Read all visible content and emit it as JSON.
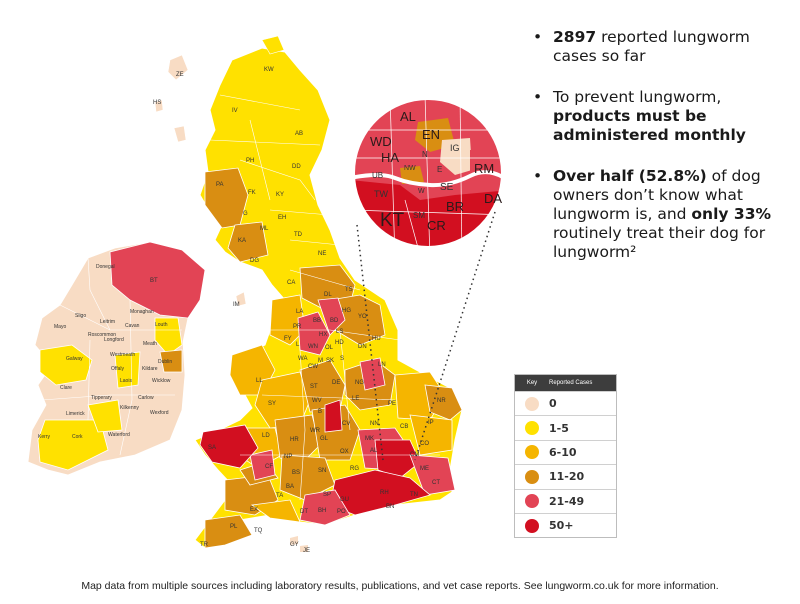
{
  "bullets": [
    {
      "parts": [
        {
          "text": "2897",
          "bold": true
        },
        {
          "text": " reported lungworm cases so far",
          "bold": false
        }
      ]
    },
    {
      "parts": [
        {
          "text": "To prevent lungworm, ",
          "bold": false
        },
        {
          "text": "products must be administered monthly",
          "bold": true
        }
      ]
    },
    {
      "parts": [
        {
          "text": "Over half (52.8%)",
          "bold": true
        },
        {
          "text": " of dog owners don’t know what lungworm is, and ",
          "bold": false
        },
        {
          "text": "only 33%",
          "bold": true
        },
        {
          "text": " routinely treat their dog for lungworm²",
          "bold": false
        }
      ]
    }
  ],
  "bullet_glyph": "•",
  "legend": {
    "header_key": "Key",
    "header_cases": "Reported Cases",
    "items": [
      {
        "label": "0",
        "color": "#f8dcc4"
      },
      {
        "label": "1-5",
        "color": "#ffe100"
      },
      {
        "label": "6-10",
        "color": "#f5b500"
      },
      {
        "label": "11-20",
        "color": "#d98e12"
      },
      {
        "label": "21-49",
        "color": "#e24455"
      },
      {
        "label": "50+",
        "color": "#d20f20"
      }
    ]
  },
  "footnote": "Map data from multiple sources including laboratory results, publications, and vet case reports. See lungworm.co.uk for more information.",
  "map_labels": {
    "gb": [
      "KW",
      "IV",
      "AB",
      "PH",
      "DD",
      "PA",
      "FK",
      "KY",
      "G",
      "ML",
      "EH",
      "TD",
      "KA",
      "DG",
      "NE",
      "CA",
      "DL",
      "TS",
      "LA",
      "YO",
      "BD",
      "BB",
      "HG",
      "LS",
      "PR",
      "HX",
      "FY",
      "HU",
      "L",
      "WN",
      "OL",
      "HD",
      "DN",
      "WA",
      "CW",
      "M",
      "SK",
      "S",
      "LN",
      "LL",
      "ST",
      "DE",
      "NG",
      "SY",
      "WV",
      "LE",
      "PE",
      "NR",
      "B",
      "CV",
      "NN",
      "IP",
      "LD",
      "HR",
      "WR",
      "MK",
      "CB",
      "CO",
      "SA",
      "GL",
      "OX",
      "AL",
      "CM",
      "SN",
      "RG",
      "CF",
      "NP",
      "BS",
      "BA",
      "SP",
      "GU",
      "RH",
      "CT",
      "TA",
      "DT",
      "BH",
      "PO",
      "BN",
      "TN",
      "ME",
      "EX",
      "PL",
      "TQ",
      "TR",
      "GY",
      "JE",
      "IM",
      "HS",
      "ZE",
      "BT"
    ],
    "ie": [
      "Donegal",
      "Sligo",
      "Leitrim",
      "Cavan",
      "Monaghan",
      "Louth",
      "Mayo",
      "Roscommon",
      "Longford",
      "Meath",
      "Westmeath",
      "Dublin",
      "Galway",
      "Offaly",
      "Kildare",
      "Laois",
      "Wicklow",
      "Clare",
      "Tipperary",
      "Carlow",
      "Kilkenny",
      "Limerick",
      "Wexford",
      "Kerry",
      "Cork",
      "Waterford"
    ],
    "inset": [
      "AL",
      "EN",
      "WD",
      "HA",
      "IG",
      "RM",
      "N",
      "NW",
      "UB",
      "E",
      "SE",
      "TW",
      "BR",
      "DA",
      "KT",
      "SM",
      "CR",
      "W"
    ]
  }
}
